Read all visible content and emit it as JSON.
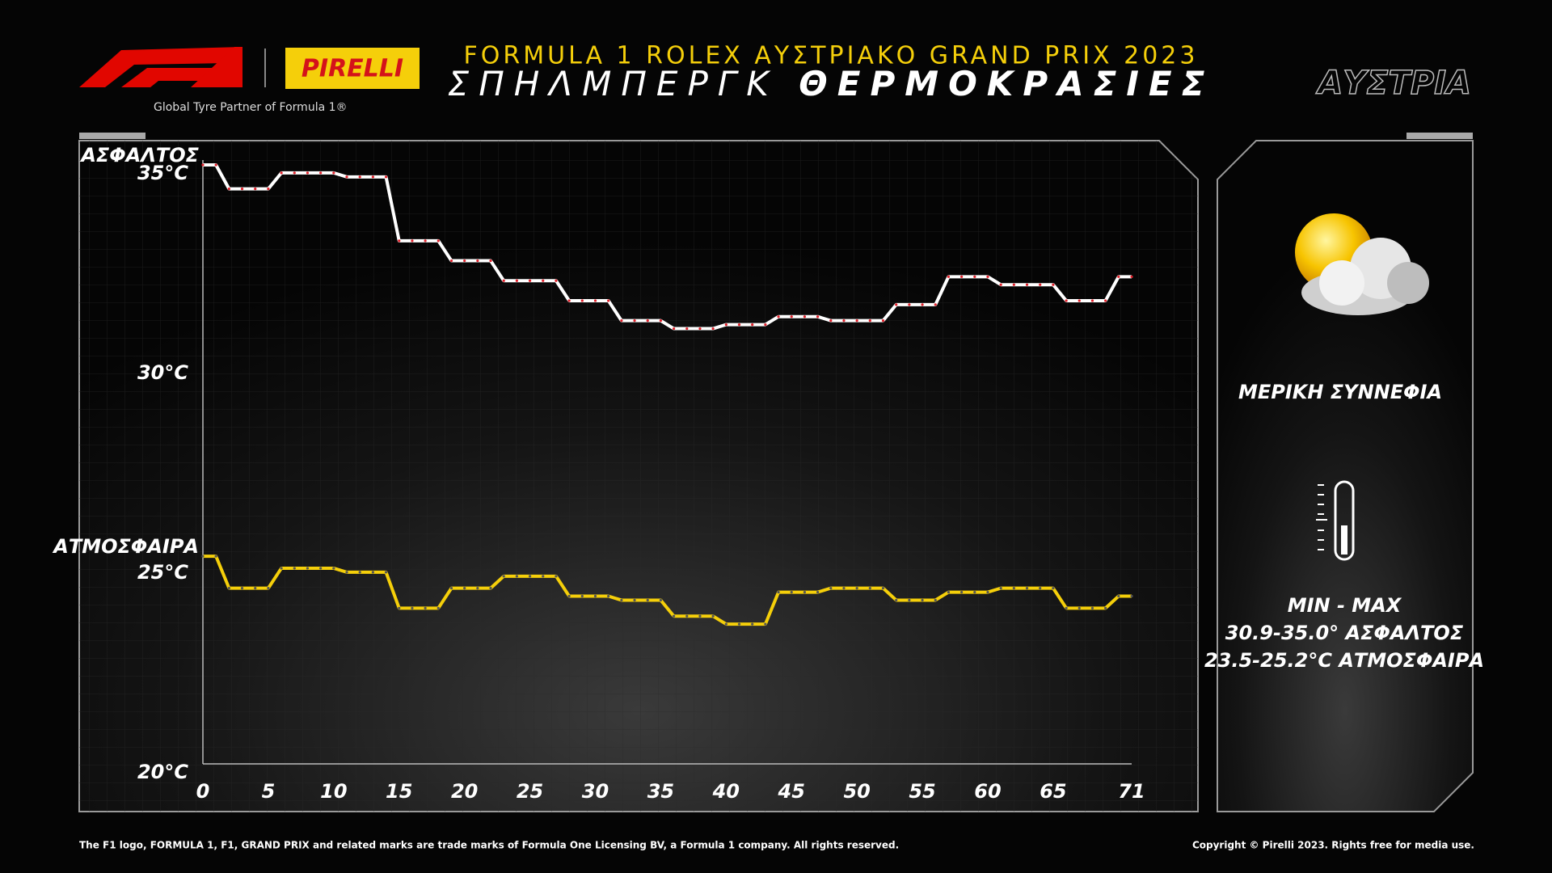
{
  "header": {
    "brand": "PIRELLI",
    "tagline": "Global Tyre Partner of Formula 1®",
    "country": "ΑΥΣΤΡΙΑ"
  },
  "chart_data": {
    "type": "line",
    "title": "FORMULA 1 ROLEX ΑΥΣΤΡΙΑΚΟ GRAND PRIX 2023",
    "subtitle": [
      "ΣΠΗΛΜΠΕΡΓΚ",
      "ΘΕΡΜΟΚΡΑΣΙΕΣ"
    ],
    "x": [
      0,
      1,
      2,
      3,
      4,
      5,
      6,
      7,
      8,
      9,
      10,
      11,
      12,
      13,
      14,
      15,
      16,
      17,
      18,
      19,
      20,
      21,
      22,
      23,
      24,
      25,
      26,
      27,
      28,
      29,
      30,
      31,
      32,
      33,
      34,
      35,
      36,
      37,
      38,
      39,
      40,
      41,
      42,
      43,
      44,
      45,
      46,
      47,
      48,
      49,
      50,
      51,
      52,
      53,
      54,
      55,
      56,
      57,
      58,
      59,
      60,
      61,
      62,
      63,
      64,
      65,
      66,
      67,
      68,
      69,
      70,
      71
    ],
    "series": [
      {
        "name": "ΑΣΦΑΛΤΟΣ",
        "color": "#ffffff",
        "dot_color": "#e0202a",
        "values": [
          35.0,
          35.0,
          34.4,
          34.4,
          34.4,
          34.4,
          34.8,
          34.8,
          34.8,
          34.8,
          34.8,
          34.7,
          34.7,
          34.7,
          34.7,
          33.1,
          33.1,
          33.1,
          33.1,
          32.6,
          32.6,
          32.6,
          32.6,
          32.1,
          32.1,
          32.1,
          32.1,
          32.1,
          31.6,
          31.6,
          31.6,
          31.6,
          31.1,
          31.1,
          31.1,
          31.1,
          30.9,
          30.9,
          30.9,
          30.9,
          31.0,
          31.0,
          31.0,
          31.0,
          31.2,
          31.2,
          31.2,
          31.2,
          31.1,
          31.1,
          31.1,
          31.1,
          31.1,
          31.5,
          31.5,
          31.5,
          31.5,
          32.2,
          32.2,
          32.2,
          32.2,
          32.0,
          32.0,
          32.0,
          32.0,
          32.0,
          31.6,
          31.6,
          31.6,
          31.6,
          32.2,
          32.2
        ]
      },
      {
        "name": "ΑΤΜΟΣΦΑΙΡΑ",
        "color": "#f5cf0a",
        "dot_color": "#555555",
        "values": [
          25.2,
          25.2,
          24.4,
          24.4,
          24.4,
          24.4,
          24.9,
          24.9,
          24.9,
          24.9,
          24.9,
          24.8,
          24.8,
          24.8,
          24.8,
          23.9,
          23.9,
          23.9,
          23.9,
          24.4,
          24.4,
          24.4,
          24.4,
          24.7,
          24.7,
          24.7,
          24.7,
          24.7,
          24.2,
          24.2,
          24.2,
          24.2,
          24.1,
          24.1,
          24.1,
          24.1,
          23.7,
          23.7,
          23.7,
          23.7,
          23.5,
          23.5,
          23.5,
          23.5,
          24.3,
          24.3,
          24.3,
          24.3,
          24.4,
          24.4,
          24.4,
          24.4,
          24.4,
          24.1,
          24.1,
          24.1,
          24.1,
          24.3,
          24.3,
          24.3,
          24.3,
          24.4,
          24.4,
          24.4,
          24.4,
          24.4,
          23.9,
          23.9,
          23.9,
          23.9,
          24.2,
          24.2
        ]
      }
    ],
    "xlim": [
      0,
      71
    ],
    "xticks": [
      0,
      5,
      10,
      15,
      20,
      25,
      30,
      35,
      40,
      45,
      50,
      55,
      60,
      65,
      71
    ],
    "ylim": [
      20,
      35
    ],
    "yticks": [
      {
        "value": 20,
        "label": "20°C"
      },
      {
        "value": 25,
        "label": "25°C"
      },
      {
        "value": 30,
        "label": "30°C"
      },
      {
        "value": 35,
        "label": "35°C"
      }
    ],
    "grid": false
  },
  "panel": {
    "weather": "ΜΕΡΙΚΗ ΣΥΝΝΕΦΙΑ",
    "minmax": "MIN  -  MAX",
    "track_range": "30.9-35.0° ΑΣΦΑΛΤΟΣ",
    "air_range": "23.5-25.2°C ΑΤΜΟΣΦΑΙΡΑ"
  },
  "footer": {
    "left": "The F1 logo, FORMULA 1, F1, GRAND PRIX and related marks are trade marks of Formula One Licensing BV, a Formula 1 company. All rights reserved.",
    "right": "Copyright © Pirelli 2023. Rights free for media use."
  }
}
